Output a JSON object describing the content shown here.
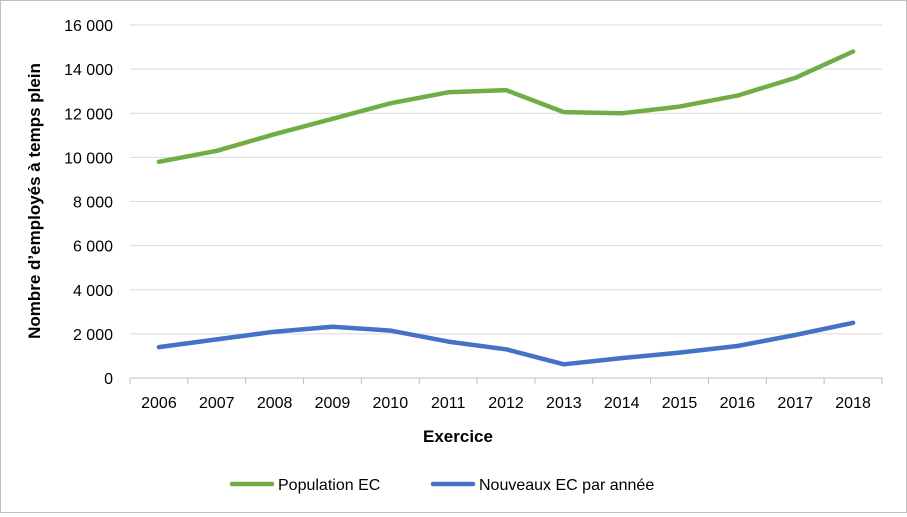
{
  "chart_data": {
    "type": "line",
    "title": "",
    "xlabel": "Exercice",
    "ylabel": "Nombre d’employés à temps plein",
    "x": [
      "2006",
      "2007",
      "2008",
      "2009",
      "2010",
      "2011",
      "2012",
      "2013",
      "2014",
      "2015",
      "2016",
      "2017",
      "2018"
    ],
    "ylim": [
      0,
      16000
    ],
    "yticks": [
      0,
      2000,
      4000,
      6000,
      8000,
      10000,
      12000,
      14000,
      16000
    ],
    "ytick_labels": [
      "0",
      "2 000",
      "4 000",
      "6 000",
      "8 000",
      "10 000",
      "12 000",
      "14 000",
      "16 000"
    ],
    "grid": true,
    "legend_position": "bottom",
    "series": [
      {
        "name": "Population EC",
        "color": "#70ad47",
        "values": [
          9800,
          10300,
          11050,
          11750,
          12450,
          12950,
          13050,
          12050,
          12000,
          12300,
          12800,
          13600,
          14800
        ]
      },
      {
        "name": "Nouveaux EC par année",
        "color": "#4472c4",
        "values": [
          1400,
          1750,
          2100,
          2320,
          2150,
          1650,
          1300,
          620,
          900,
          1150,
          1450,
          1950,
          2500
        ]
      }
    ]
  }
}
